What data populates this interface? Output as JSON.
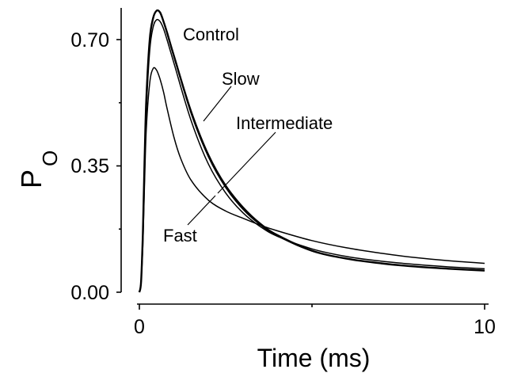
{
  "chart_data": {
    "type": "line",
    "title": "",
    "xlabel": "Time (ms)",
    "ylabel_main": "P",
    "ylabel_sub": "O",
    "xlim": [
      0,
      10
    ],
    "ylim": [
      0,
      0.79
    ],
    "x_ticks": [
      0,
      10
    ],
    "x_tick_labels": [
      "0",
      "10"
    ],
    "x_minor_ticks": [
      5
    ],
    "y_ticks": [
      0.0,
      0.35,
      0.7
    ],
    "y_tick_labels": [
      "0.00",
      "0.35",
      "0.70"
    ],
    "y_minor_ticks": [
      0.175,
      0.525
    ],
    "grid": false,
    "series": [
      {
        "name": "Control",
        "x": [
          0,
          0.05,
          0.1,
          0.15,
          0.2,
          0.3,
          0.4,
          0.5,
          0.6,
          0.7,
          0.8,
          1.0,
          1.5,
          2.0,
          2.5,
          3.0,
          3.5,
          4.0,
          5.0,
          6.0,
          7.0,
          8.0,
          9.0,
          10.0
        ],
        "y": [
          0.0,
          0.03,
          0.16,
          0.36,
          0.53,
          0.7,
          0.76,
          0.78,
          0.775,
          0.75,
          0.72,
          0.655,
          0.5,
          0.38,
          0.295,
          0.235,
          0.19,
          0.158,
          0.115,
          0.093,
          0.08,
          0.071,
          0.065,
          0.06
        ]
      },
      {
        "name": "Slow",
        "x": [
          0,
          0.05,
          0.1,
          0.15,
          0.2,
          0.3,
          0.4,
          0.5,
          0.6,
          0.7,
          0.8,
          1.0,
          1.5,
          2.0,
          2.5,
          3.0,
          3.5,
          4.0,
          5.0,
          6.0,
          7.0,
          8.0,
          9.0,
          10.0
        ],
        "y": [
          0.0,
          0.03,
          0.15,
          0.34,
          0.5,
          0.67,
          0.735,
          0.755,
          0.75,
          0.73,
          0.7,
          0.635,
          0.475,
          0.355,
          0.275,
          0.22,
          0.182,
          0.155,
          0.12,
          0.099,
          0.086,
          0.077,
          0.07,
          0.065
        ]
      },
      {
        "name": "Intermediate",
        "x": [
          0,
          0.05,
          0.1,
          0.15,
          0.2,
          0.3,
          0.4,
          0.5,
          0.6,
          0.7,
          0.8,
          1.0,
          1.5,
          2.0,
          2.5,
          3.0,
          3.5,
          4.0,
          5.0,
          6.0,
          7.0,
          8.0,
          9.0,
          10.0
        ],
        "y": [
          0.0,
          0.03,
          0.16,
          0.36,
          0.53,
          0.7,
          0.76,
          0.78,
          0.775,
          0.75,
          0.72,
          0.655,
          0.495,
          0.375,
          0.29,
          0.23,
          0.187,
          0.156,
          0.114,
          0.093,
          0.08,
          0.071,
          0.065,
          0.061
        ]
      },
      {
        "name": "Fast",
        "x": [
          0,
          0.05,
          0.1,
          0.15,
          0.2,
          0.3,
          0.4,
          0.5,
          0.6,
          0.7,
          0.8,
          1.0,
          1.2,
          1.5,
          2.0,
          2.5,
          3.0,
          3.5,
          4.0,
          5.0,
          6.0,
          7.0,
          8.0,
          9.0,
          10.0
        ],
        "y": [
          0.0,
          0.03,
          0.13,
          0.3,
          0.45,
          0.58,
          0.62,
          0.615,
          0.59,
          0.555,
          0.51,
          0.43,
          0.37,
          0.31,
          0.255,
          0.225,
          0.205,
          0.186,
          0.17,
          0.143,
          0.123,
          0.108,
          0.096,
          0.087,
          0.08
        ]
      }
    ],
    "annotations": [
      {
        "text": "Control",
        "series": "Control"
      },
      {
        "text": "Slow",
        "series": "Slow"
      },
      {
        "text": "Intermediate",
        "series": "Intermediate"
      },
      {
        "text": "Fast",
        "series": "Fast"
      }
    ]
  }
}
